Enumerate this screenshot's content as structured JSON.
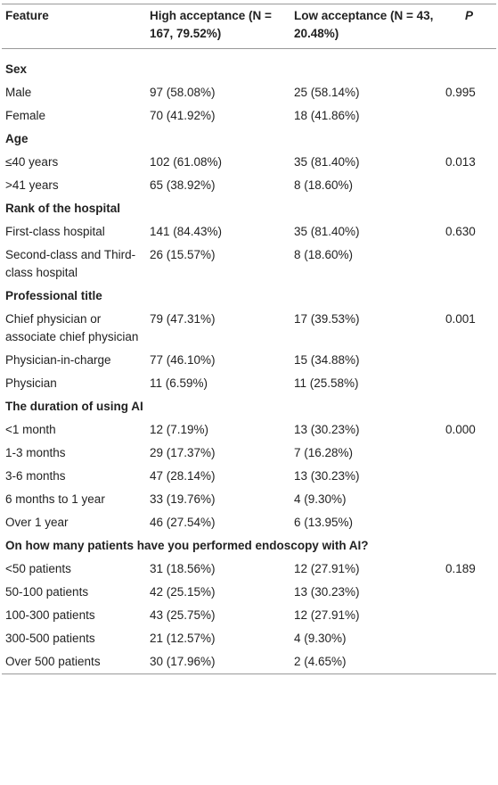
{
  "table": {
    "header": [
      "Feature",
      "High acceptance (N = 167, 79.52%)",
      "Low acceptance (N = 43, 20.48%)",
      "P"
    ],
    "sections": [
      {
        "title": "Sex",
        "rows": [
          [
            "Male",
            "97 (58.08%)",
            "25 (58.14%)",
            "0.995"
          ],
          [
            "Female",
            "70 (41.92%)",
            "18 (41.86%)"
          ]
        ]
      },
      {
        "title": "Age",
        "rows": [
          [
            "≤40 years",
            "102 (61.08%)",
            "35 (81.40%)",
            "0.013"
          ],
          [
            ">41 years",
            "65 (38.92%)",
            "8 (18.60%)"
          ]
        ]
      },
      {
        "title": "Rank of the hospital",
        "rows": [
          [
            "First-class hospital",
            "141 (84.43%)",
            "35 (81.40%)",
            "0.630"
          ],
          [
            "Second-class and Third-class hospital",
            "26 (15.57%)",
            "8 (18.60%)"
          ]
        ]
      },
      {
        "title": "Professional title",
        "rows": [
          [
            "Chief physician or associate chief physician",
            "79 (47.31%)",
            "17 (39.53%)",
            "0.001"
          ],
          [
            "Physician-in-charge",
            "77 (46.10%)",
            "15 (34.88%)"
          ],
          [
            "Physician",
            "11 (6.59%)",
            "11 (25.58%)"
          ]
        ]
      },
      {
        "title": "The duration of using AI",
        "rows": [
          [
            "<1 month",
            "12 (7.19%)",
            "13 (30.23%)",
            "0.000"
          ],
          [
            "1-3 months",
            "29 (17.37%)",
            "7 (16.28%)"
          ],
          [
            "3-6 months",
            "47 (28.14%)",
            "13 (30.23%)"
          ],
          [
            "6 months to 1 year",
            "33 (19.76%)",
            "4 (9.30%)"
          ],
          [
            "Over 1 year",
            "46 (27.54%)",
            "6 (13.95%)"
          ]
        ]
      },
      {
        "title": "On how many patients have you performed endoscopy with AI?",
        "rows": [
          [
            "<50 patients",
            "31 (18.56%)",
            "12 (27.91%)",
            "0.189"
          ],
          [
            "50-100 patients",
            "42 (25.15%)",
            "13 (30.23%)"
          ],
          [
            "100-300 patients",
            "43 (25.75%)",
            "12 (27.91%)"
          ],
          [
            "300-500 patients",
            "21 (12.57%)",
            "4 (9.30%)"
          ],
          [
            "Over 500 patients",
            "30 (17.96%)",
            "2 (4.65%)"
          ]
        ]
      }
    ]
  }
}
